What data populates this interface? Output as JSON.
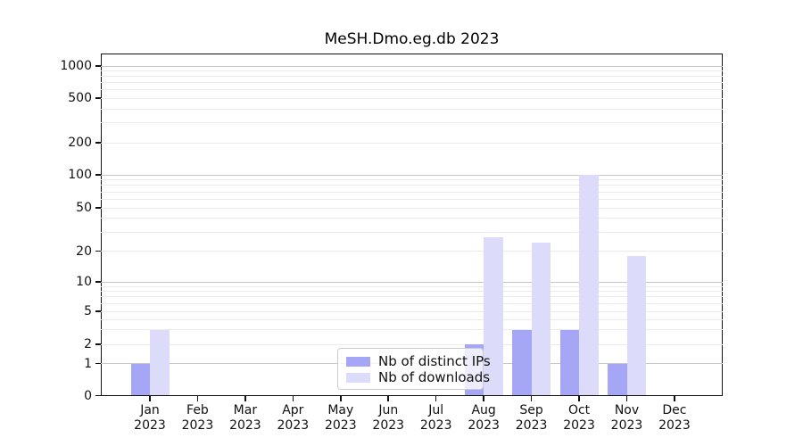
{
  "chart_data": {
    "type": "bar",
    "title": "MeSH.Dmo.eg.db 2023",
    "categories": [
      "Jan",
      "Feb",
      "Mar",
      "Apr",
      "May",
      "Jun",
      "Jul",
      "Aug",
      "Sep",
      "Oct",
      "Nov",
      "Dec"
    ],
    "x_year": "2023",
    "series": [
      {
        "name": "Nb of distinct IPs",
        "color": "#a6a6f6",
        "values": [
          1,
          0,
          0,
          0,
          0,
          0,
          0,
          2,
          3,
          3,
          1,
          0
        ]
      },
      {
        "name": "Nb of downloads",
        "color": "#dcdcfa",
        "values": [
          3,
          0,
          0,
          0,
          0,
          0,
          0,
          27,
          24,
          100,
          18,
          0
        ]
      }
    ],
    "yticks": [
      0,
      1,
      2,
      5,
      10,
      20,
      50,
      100,
      200,
      500,
      1000
    ],
    "yscale": "log-like",
    "ylim": [
      0,
      1300
    ],
    "grid": true,
    "legend_position": "bottom-center"
  }
}
